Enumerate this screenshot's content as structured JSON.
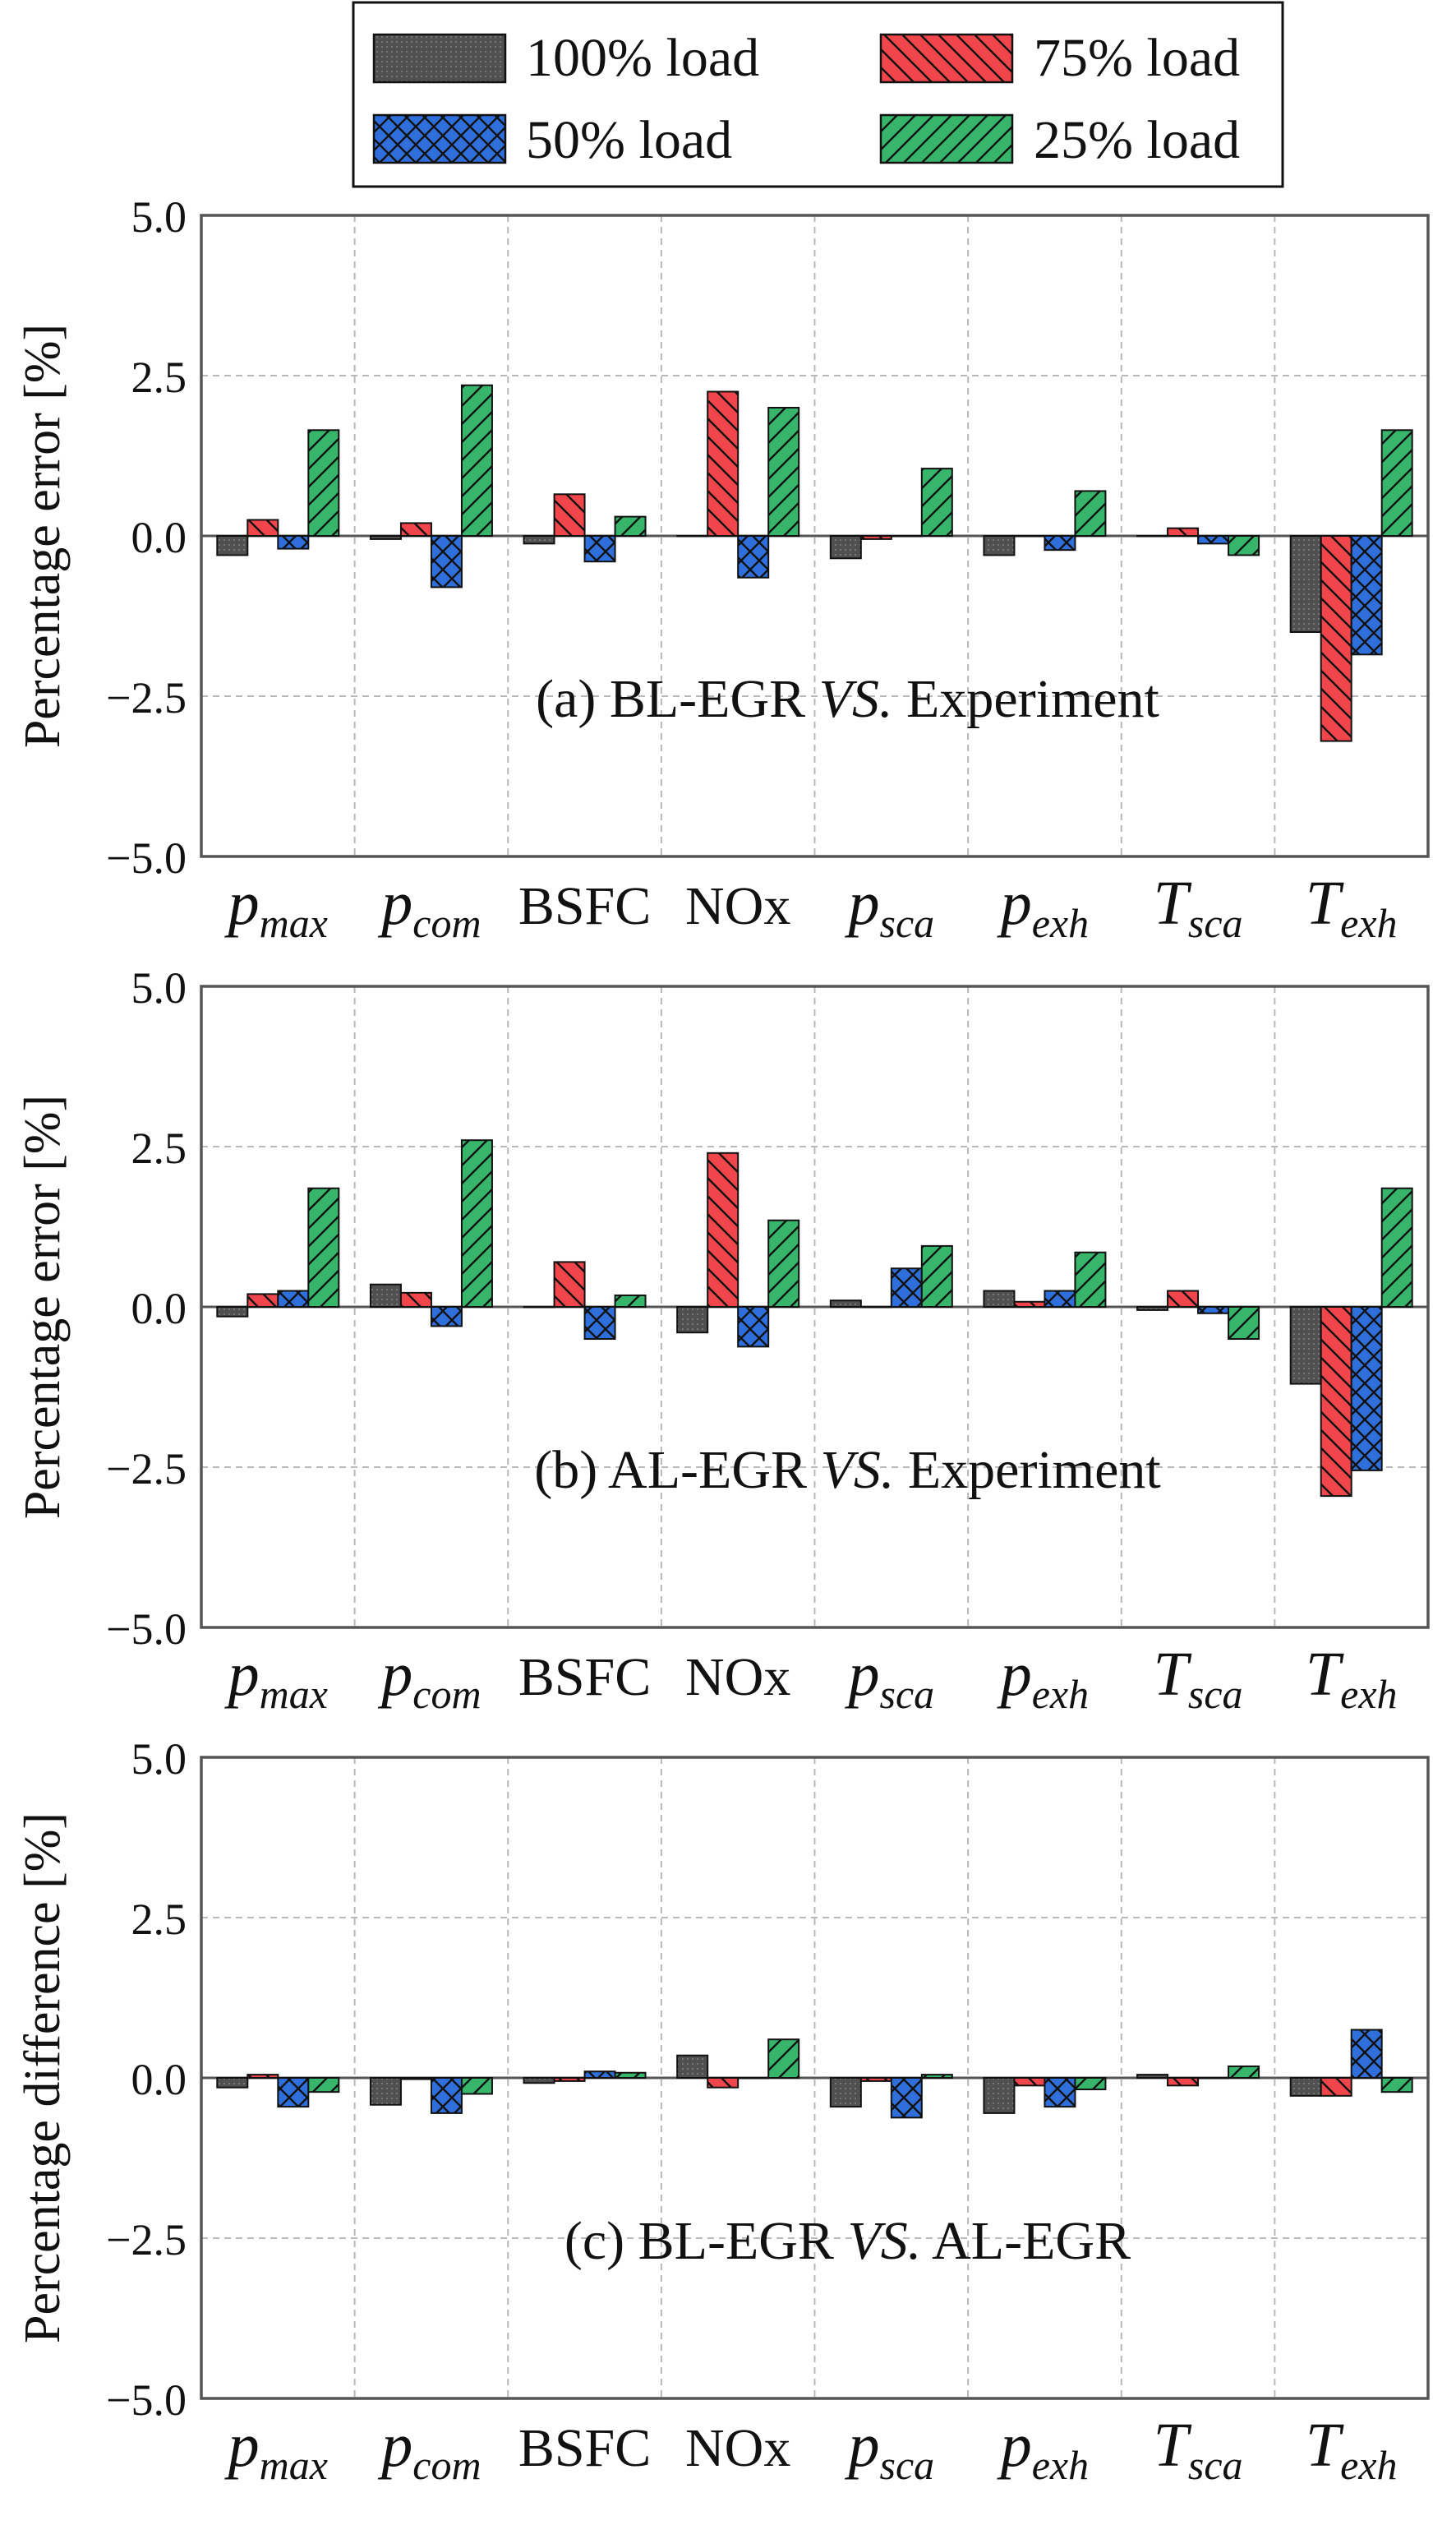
{
  "legend": {
    "items": [
      {
        "key": "l100",
        "label": "100% load",
        "color": "#505050",
        "pattern": "dots"
      },
      {
        "key": "l75",
        "label": "75% load",
        "color": "#f0454a",
        "pattern": "back-diagonal"
      },
      {
        "key": "l50",
        "label": "50% load",
        "color": "#2f6fdb",
        "pattern": "crosshatch"
      },
      {
        "key": "l25",
        "label": "25% load",
        "color": "#36b56b",
        "pattern": "forward-diagonal"
      }
    ]
  },
  "chart_data": [
    {
      "type": "bar",
      "panel_label": "(a) BL-EGR VS. Experiment",
      "panel_label_parts": [
        "(a) BL-EGR ",
        "VS.",
        " Experiment"
      ],
      "ylabel": "Percentage error [%]",
      "ylim": [
        -5.0,
        5.0
      ],
      "yticks": [
        "5.0",
        "2.5",
        "0.0",
        "−2.5",
        "−5.0"
      ],
      "grid": true,
      "categories": [
        {
          "base": "p",
          "sub": "max"
        },
        {
          "base": "p",
          "sub": "com"
        },
        {
          "base": "BSFC",
          "sub": ""
        },
        {
          "base": "NOx",
          "sub": ""
        },
        {
          "base": "p",
          "sub": "sca"
        },
        {
          "base": "p",
          "sub": "exh"
        },
        {
          "base": "T",
          "sub": "sca"
        },
        {
          "base": "T",
          "sub": "exh"
        }
      ],
      "series": [
        {
          "name": "100% load",
          "values": [
            -0.3,
            -0.05,
            -0.12,
            0.0,
            -0.35,
            -0.3,
            0.0,
            -1.5
          ]
        },
        {
          "name": "75% load",
          "values": [
            0.25,
            0.2,
            0.65,
            2.25,
            -0.05,
            0.0,
            0.12,
            -3.2
          ]
        },
        {
          "name": "50% load",
          "values": [
            -0.2,
            -0.8,
            -0.4,
            -0.65,
            0.0,
            -0.22,
            -0.12,
            -1.85
          ]
        },
        {
          "name": "25% load",
          "values": [
            1.65,
            2.35,
            0.3,
            2.0,
            1.05,
            0.7,
            -0.3,
            1.65
          ]
        }
      ]
    },
    {
      "type": "bar",
      "panel_label": "(b) AL-EGR VS. Experiment",
      "panel_label_parts": [
        "(b) AL-EGR ",
        "VS.",
        " Experiment"
      ],
      "ylabel": "Percentage error [%]",
      "ylim": [
        -5.0,
        5.0
      ],
      "yticks": [
        "5.0",
        "2.5",
        "0.0",
        "−2.5",
        "−5.0"
      ],
      "grid": true,
      "categories": [
        {
          "base": "p",
          "sub": "max"
        },
        {
          "base": "p",
          "sub": "com"
        },
        {
          "base": "BSFC",
          "sub": ""
        },
        {
          "base": "NOx",
          "sub": ""
        },
        {
          "base": "p",
          "sub": "sca"
        },
        {
          "base": "p",
          "sub": "exh"
        },
        {
          "base": "T",
          "sub": "sca"
        },
        {
          "base": "T",
          "sub": "exh"
        }
      ],
      "series": [
        {
          "name": "100% load",
          "values": [
            -0.15,
            0.35,
            0.0,
            -0.4,
            0.1,
            0.25,
            -0.05,
            -1.2
          ]
        },
        {
          "name": "75% load",
          "values": [
            0.2,
            0.22,
            0.7,
            2.4,
            0.0,
            0.08,
            0.25,
            -2.95
          ]
        },
        {
          "name": "50% load",
          "values": [
            0.25,
            -0.3,
            -0.5,
            -0.62,
            0.6,
            0.25,
            -0.1,
            -2.55
          ]
        },
        {
          "name": "25% load",
          "values": [
            1.85,
            2.6,
            0.18,
            1.35,
            0.95,
            0.85,
            -0.5,
            1.85
          ]
        }
      ]
    },
    {
      "type": "bar",
      "panel_label": "(c) BL-EGR VS. AL-EGR",
      "panel_label_parts": [
        "(c) BL-EGR ",
        "VS.",
        " AL-EGR"
      ],
      "ylabel": "Percentage difference [%]",
      "ylim": [
        -5.0,
        5.0
      ],
      "yticks": [
        "5.0",
        "2.5",
        "0.0",
        "−2.5",
        "−5.0"
      ],
      "grid": true,
      "categories": [
        {
          "base": "p",
          "sub": "max"
        },
        {
          "base": "p",
          "sub": "com"
        },
        {
          "base": "BSFC",
          "sub": ""
        },
        {
          "base": "NOx",
          "sub": ""
        },
        {
          "base": "p",
          "sub": "sca"
        },
        {
          "base": "p",
          "sub": "exh"
        },
        {
          "base": "T",
          "sub": "sca"
        },
        {
          "base": "T",
          "sub": "exh"
        }
      ],
      "series": [
        {
          "name": "100% load",
          "values": [
            -0.15,
            -0.42,
            -0.08,
            0.35,
            -0.45,
            -0.55,
            0.05,
            -0.28
          ]
        },
        {
          "name": "75% load",
          "values": [
            0.05,
            -0.02,
            -0.05,
            -0.15,
            -0.05,
            -0.12,
            -0.12,
            -0.28
          ]
        },
        {
          "name": "50% load",
          "values": [
            -0.45,
            -0.55,
            0.1,
            0.0,
            -0.62,
            -0.45,
            0.0,
            0.75
          ]
        },
        {
          "name": "25% load",
          "values": [
            -0.22,
            -0.25,
            0.08,
            0.6,
            0.05,
            -0.18,
            0.18,
            -0.22
          ]
        }
      ]
    }
  ]
}
